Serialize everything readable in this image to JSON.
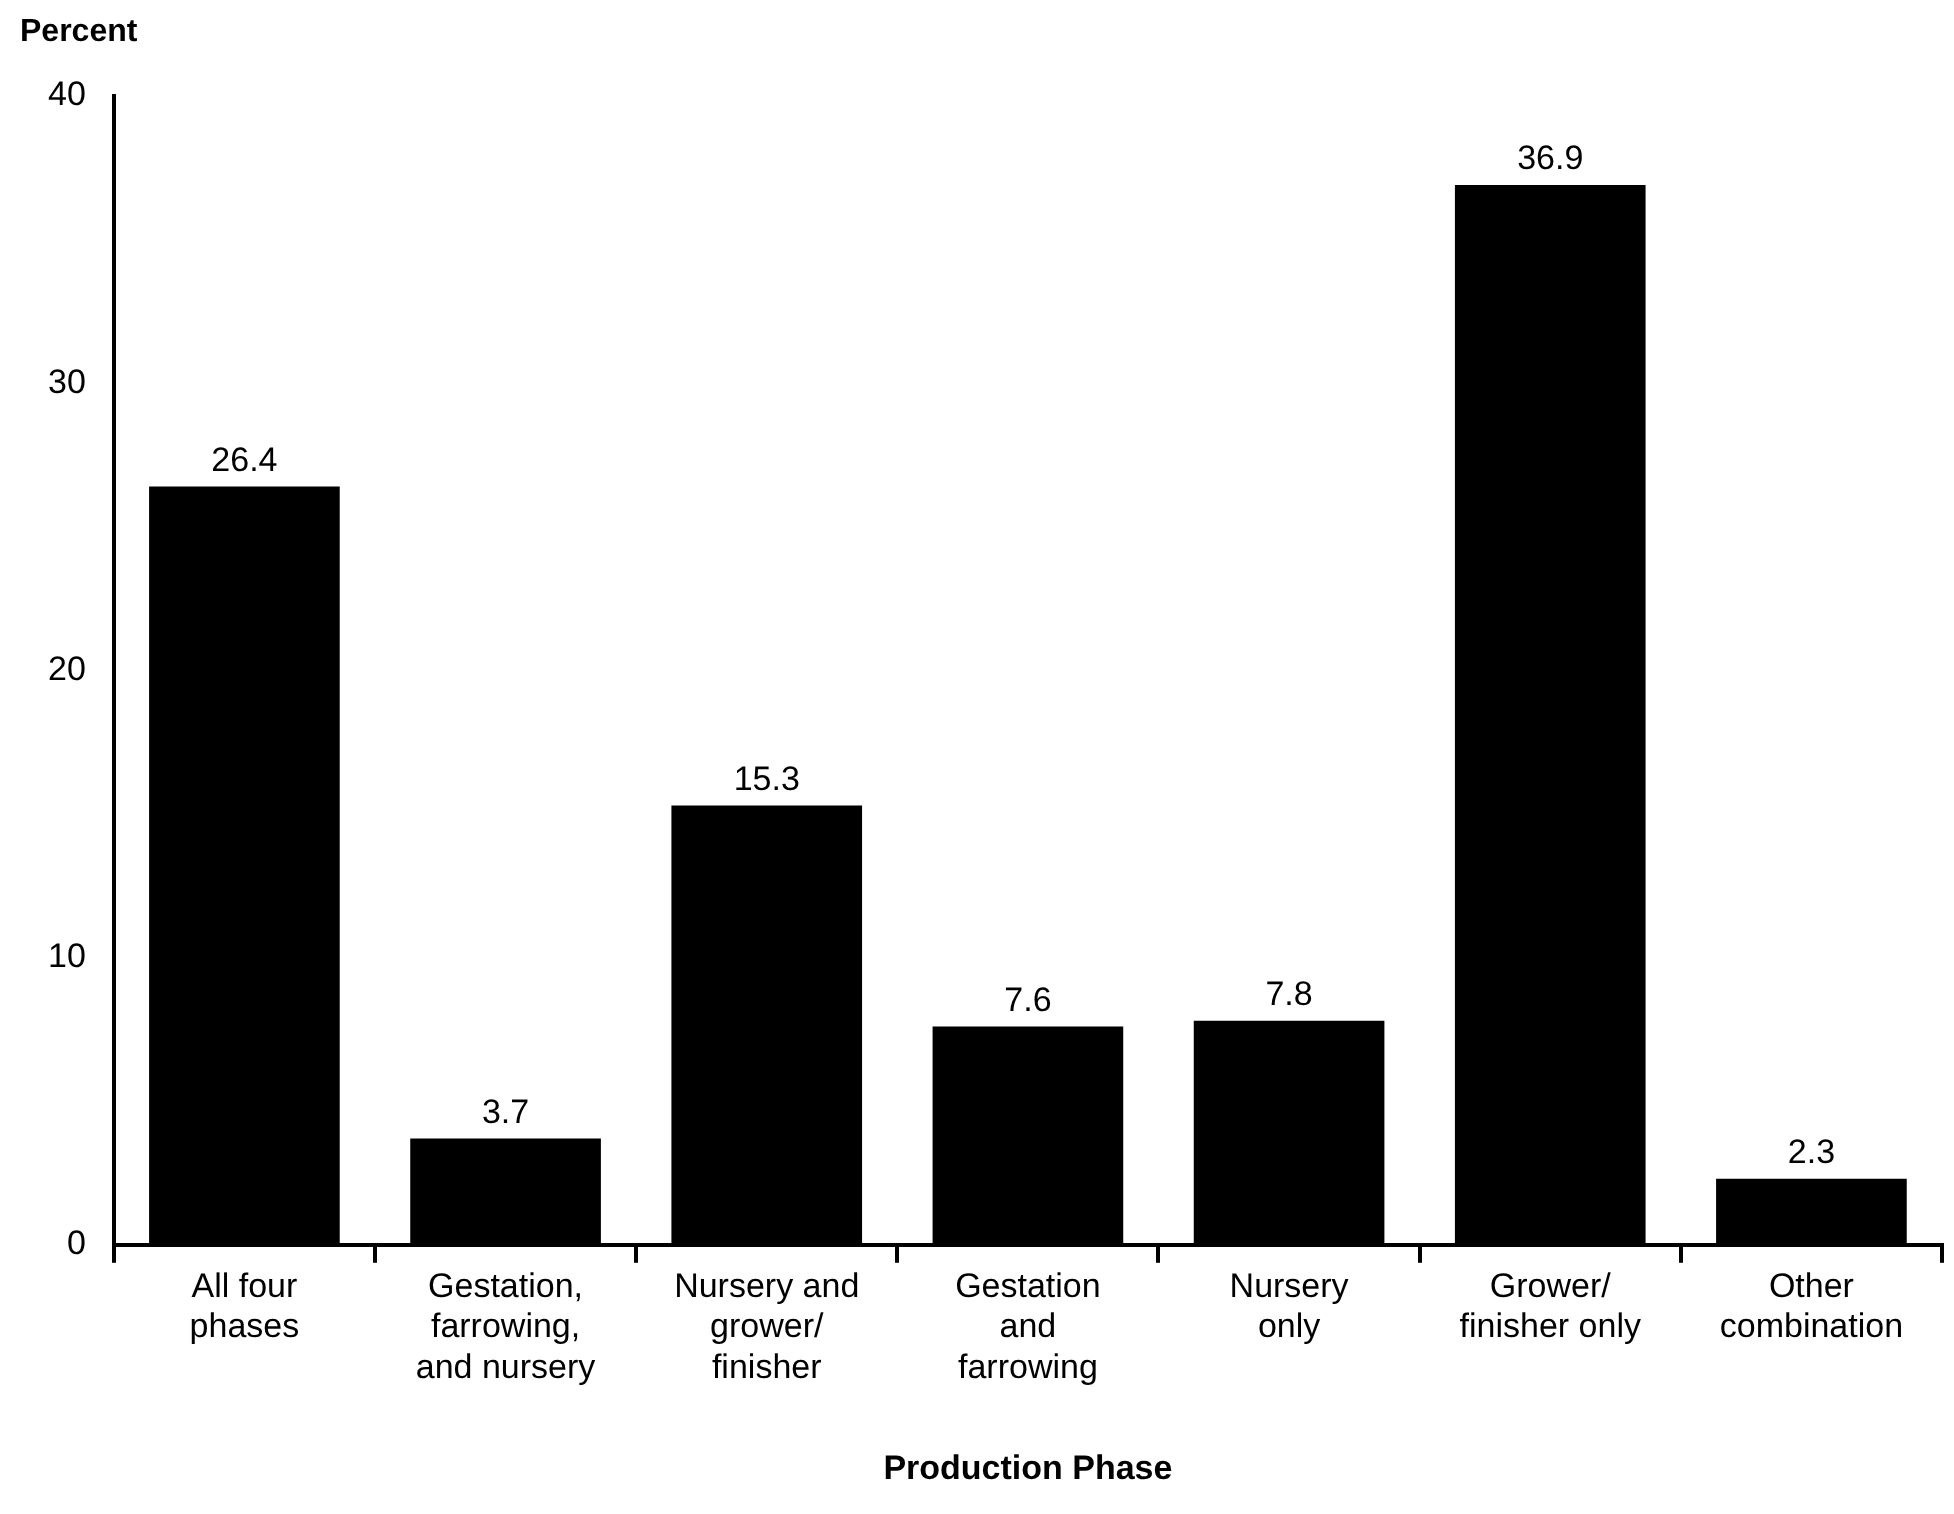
{
  "chart_data": {
    "type": "bar",
    "xlabel": "Production Phase",
    "ylabel": "Percent",
    "categories": [
      "All four phases",
      "Gestation, farrowing, and nursery",
      "Nursery and grower/ finisher",
      "Gestation and farrowing",
      "Nursery only",
      "Grower/ finisher only",
      "Other combination"
    ],
    "values": [
      26.4,
      3.7,
      15.3,
      7.6,
      7.8,
      36.9,
      2.3
    ],
    "color": "#000000",
    "ylim": [
      0,
      40
    ],
    "yticks": [
      0,
      10,
      20,
      30,
      40
    ],
    "grid": false,
    "legend": false,
    "data_labels": true
  }
}
